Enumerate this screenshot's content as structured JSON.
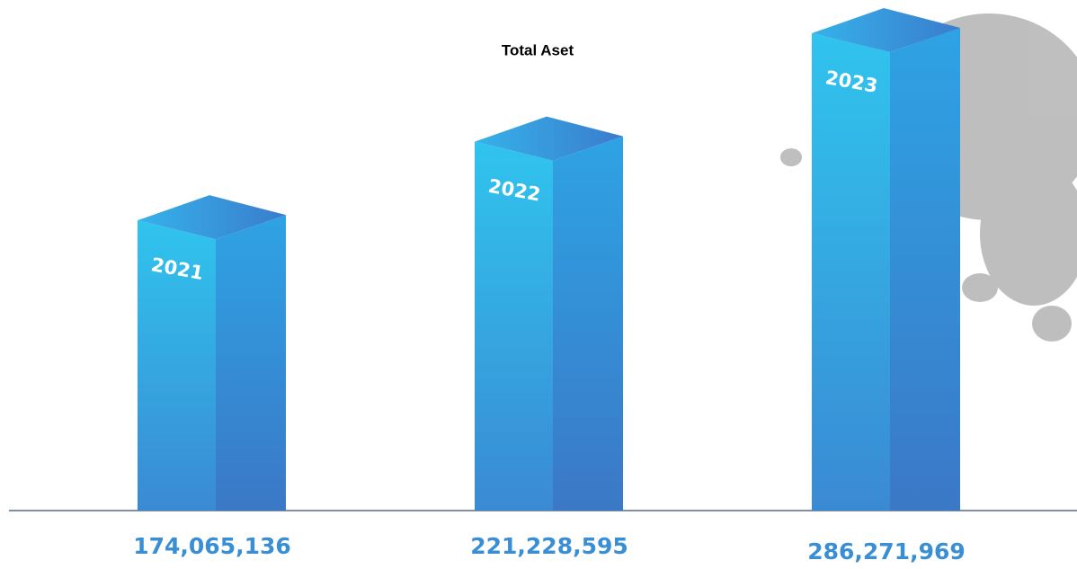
{
  "chart_data": {
    "type": "bar",
    "title": "Total Aset",
    "categories": [
      "2021",
      "2022",
      "2023"
    ],
    "values": [
      174065136,
      221228595,
      286271969
    ],
    "value_labels": [
      "174,065,136",
      "221,228,595",
      "286,271,969"
    ],
    "color": "#3a9ee0"
  }
}
